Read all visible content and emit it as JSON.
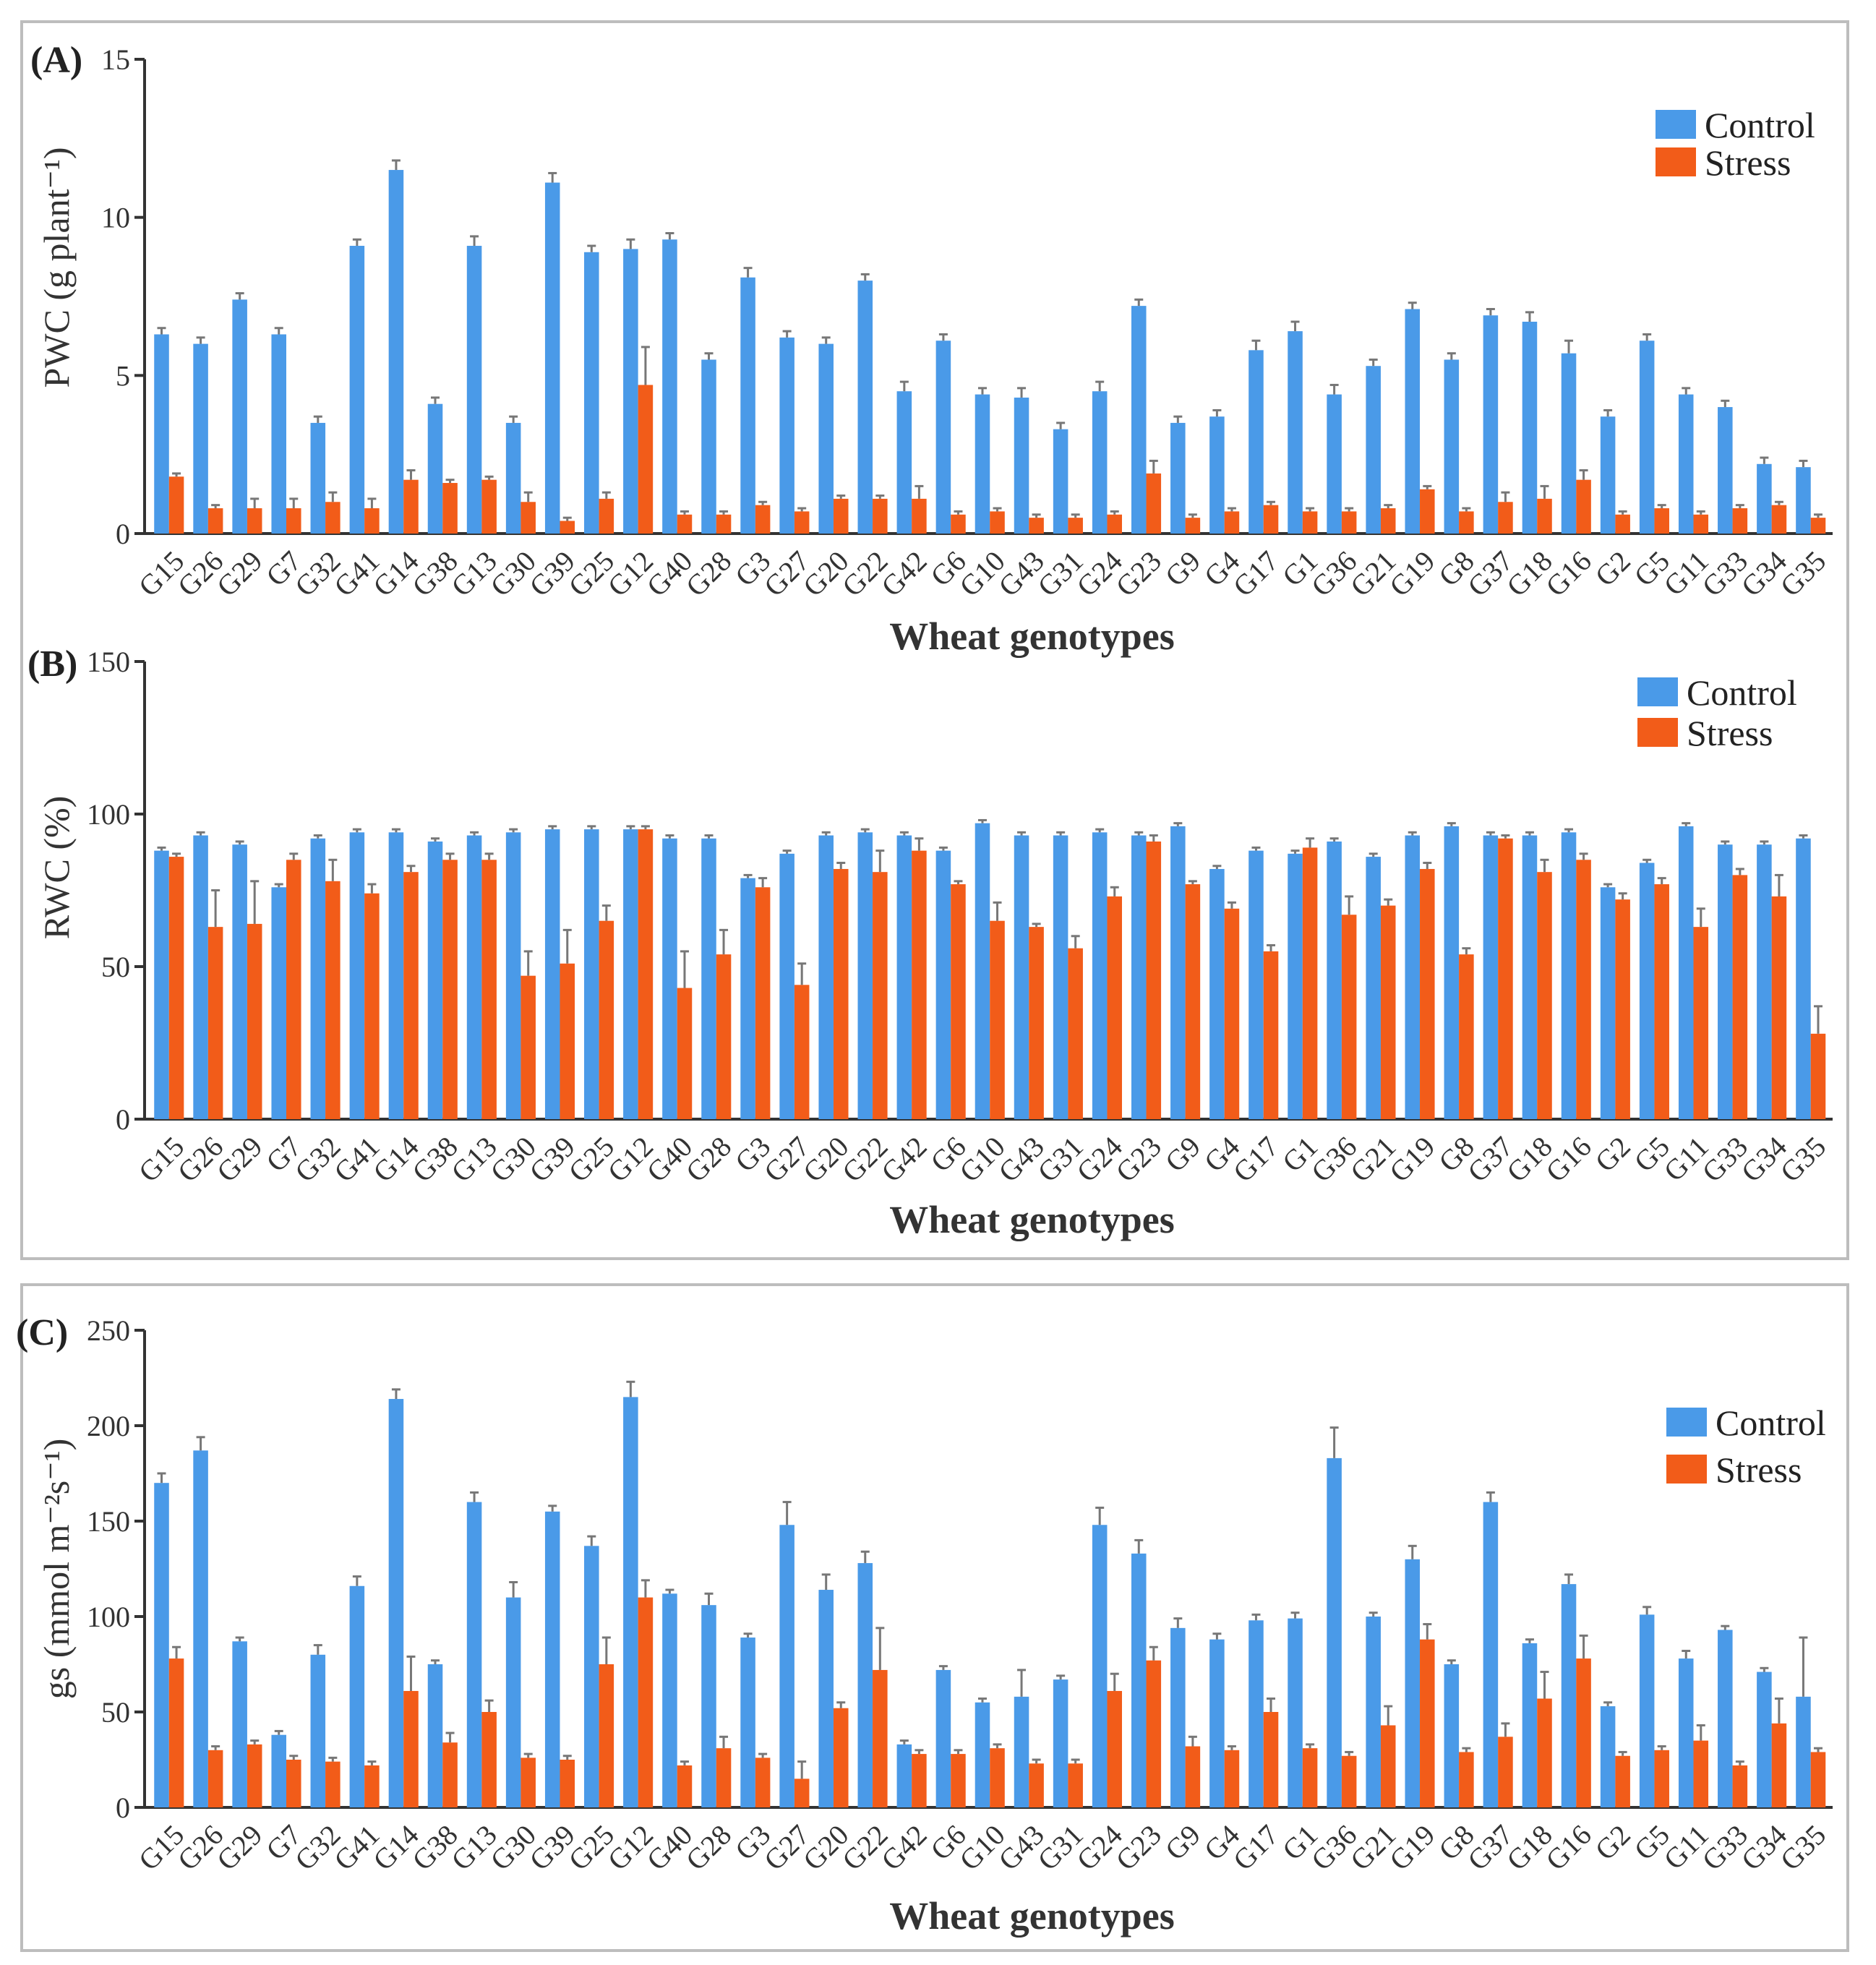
{
  "colors": {
    "control": "#4a9ae8",
    "stress": "#f25c19"
  },
  "xlabel": "Wheat genotypes",
  "chart_data": [
    {
      "type": "bar",
      "panel": "(A)",
      "ylabel": "PWC (g plant⁻¹)",
      "xlabel": "Wheat genotypes",
      "ylim": [
        0,
        15
      ],
      "yticks": [
        "0",
        "5",
        "10",
        "15"
      ],
      "legend": [
        "Control",
        "Stress"
      ],
      "legend_position": "top-right",
      "categories": [
        "G15",
        "G26",
        "G29",
        "G7",
        "G32",
        "G41",
        "G14",
        "G38",
        "G13",
        "G30",
        "G39",
        "G25",
        "G12",
        "G40",
        "G28",
        "G3",
        "G27",
        "G20",
        "G22",
        "G42",
        "G6",
        "G10",
        "G43",
        "G31",
        "G24",
        "G23",
        "G9",
        "G4",
        "G17",
        "G1",
        "G36",
        "G21",
        "G19",
        "G8",
        "G37",
        "G18",
        "G16",
        "G2",
        "G5",
        "G11",
        "G33",
        "G34",
        "G35"
      ],
      "series": [
        {
          "name": "Control",
          "values": [
            6.3,
            6.0,
            7.4,
            6.3,
            3.5,
            9.1,
            11.5,
            4.1,
            9.1,
            3.5,
            11.1,
            8.9,
            9.0,
            9.3,
            5.5,
            8.1,
            6.2,
            6.0,
            8.0,
            4.5,
            6.1,
            4.4,
            4.3,
            3.3,
            4.5,
            7.2,
            3.5,
            3.7,
            5.8,
            6.4,
            4.4,
            5.3,
            7.1,
            5.5,
            6.9,
            6.7,
            5.7,
            3.7,
            6.1,
            4.4,
            4.0,
            2.2,
            2.1
          ],
          "errors": [
            0.2,
            0.2,
            0.2,
            0.2,
            0.2,
            0.2,
            0.3,
            0.2,
            0.3,
            0.2,
            0.3,
            0.2,
            0.3,
            0.2,
            0.2,
            0.3,
            0.2,
            0.2,
            0.2,
            0.3,
            0.2,
            0.2,
            0.3,
            0.2,
            0.3,
            0.2,
            0.2,
            0.2,
            0.3,
            0.3,
            0.3,
            0.2,
            0.2,
            0.2,
            0.2,
            0.3,
            0.4,
            0.2,
            0.2,
            0.2,
            0.2,
            0.2,
            0.2
          ]
        },
        {
          "name": "Stress",
          "values": [
            1.8,
            0.8,
            0.8,
            0.8,
            1.0,
            0.8,
            1.7,
            1.6,
            1.7,
            1.0,
            0.4,
            1.1,
            4.7,
            0.6,
            0.6,
            0.9,
            0.7,
            1.1,
            1.1,
            1.1,
            0.6,
            0.7,
            0.5,
            0.5,
            0.6,
            1.9,
            0.5,
            0.7,
            0.9,
            0.7,
            0.7,
            0.8,
            1.4,
            0.7,
            1.0,
            1.1,
            1.7,
            0.6,
            0.8,
            0.6,
            0.8,
            0.9,
            0.5
          ],
          "errors": [
            0.1,
            0.1,
            0.3,
            0.3,
            0.3,
            0.3,
            0.3,
            0.1,
            0.1,
            0.3,
            0.1,
            0.2,
            1.2,
            0.1,
            0.1,
            0.1,
            0.1,
            0.1,
            0.1,
            0.4,
            0.1,
            0.1,
            0.1,
            0.1,
            0.1,
            0.4,
            0.1,
            0.1,
            0.1,
            0.1,
            0.1,
            0.1,
            0.1,
            0.1,
            0.3,
            0.4,
            0.3,
            0.1,
            0.1,
            0.1,
            0.1,
            0.1,
            0.1
          ]
        }
      ]
    },
    {
      "type": "bar",
      "panel": "(B)",
      "ylabel": "RWC (%)",
      "xlabel": "Wheat genotypes",
      "ylim": [
        0,
        150
      ],
      "yticks": [
        "0",
        "50",
        "100",
        "150"
      ],
      "legend": [
        "Control",
        "Stress"
      ],
      "legend_position": "top-right",
      "categories": [
        "G15",
        "G26",
        "G29",
        "G7",
        "G32",
        "G41",
        "G14",
        "G38",
        "G13",
        "G30",
        "G39",
        "G25",
        "G12",
        "G40",
        "G28",
        "G3",
        "G27",
        "G20",
        "G22",
        "G42",
        "G6",
        "G10",
        "G43",
        "G31",
        "G24",
        "G23",
        "G9",
        "G4",
        "G17",
        "G1",
        "G36",
        "G21",
        "G19",
        "G8",
        "G37",
        "G18",
        "G16",
        "G2",
        "G5",
        "G11",
        "G33",
        "G34",
        "G35"
      ],
      "series": [
        {
          "name": "Control",
          "values": [
            88,
            93,
            90,
            76,
            92,
            94,
            94,
            91,
            93,
            94,
            95,
            95,
            95,
            92,
            92,
            79,
            87,
            93,
            94,
            93,
            88,
            97,
            93,
            93,
            94,
            93,
            96,
            82,
            88,
            87,
            91,
            86,
            93,
            96,
            93,
            93,
            94,
            76,
            84,
            96,
            90,
            90,
            92
          ],
          "errors": [
            1,
            1,
            1,
            1,
            1,
            1,
            1,
            1,
            1,
            1,
            1,
            1,
            1,
            1,
            1,
            1,
            1,
            1,
            1,
            1,
            1,
            1,
            1,
            1,
            1,
            1,
            1,
            1,
            1,
            1,
            1,
            1,
            1,
            1,
            1,
            1,
            1,
            1,
            1,
            1,
            1,
            1,
            1
          ]
        },
        {
          "name": "Stress",
          "values": [
            86,
            63,
            64,
            85,
            78,
            74,
            81,
            85,
            85,
            47,
            51,
            65,
            95,
            43,
            54,
            76,
            44,
            82,
            81,
            88,
            77,
            65,
            63,
            56,
            73,
            91,
            77,
            69,
            55,
            89,
            67,
            70,
            82,
            54,
            92,
            81,
            85,
            72,
            77,
            63,
            80,
            73,
            28
          ],
          "errors": [
            1,
            12,
            14,
            2,
            7,
            3,
            2,
            2,
            2,
            8,
            11,
            5,
            1,
            12,
            8,
            3,
            7,
            2,
            7,
            4,
            1,
            6,
            1,
            4,
            3,
            2,
            1,
            2,
            2,
            3,
            6,
            2,
            2,
            2,
            1,
            4,
            2,
            2,
            2,
            6,
            2,
            7,
            9
          ]
        }
      ]
    },
    {
      "type": "bar",
      "panel": "(C)",
      "ylabel": "gs (mmol m⁻²s⁻¹)",
      "xlabel": "Wheat genotypes",
      "ylim": [
        0,
        250
      ],
      "yticks": [
        "0",
        "50",
        "100",
        "150",
        "200",
        "250"
      ],
      "legend": [
        "Control",
        "Stress"
      ],
      "legend_position": "top-right",
      "categories": [
        "G15",
        "G26",
        "G29",
        "G7",
        "G32",
        "G41",
        "G14",
        "G38",
        "G13",
        "G30",
        "G39",
        "G25",
        "G12",
        "G40",
        "G28",
        "G3",
        "G27",
        "G20",
        "G22",
        "G42",
        "G6",
        "G10",
        "G43",
        "G31",
        "G24",
        "G23",
        "G9",
        "G4",
        "G17",
        "G1",
        "G36",
        "G21",
        "G19",
        "G8",
        "G37",
        "G18",
        "G16",
        "G2",
        "G5",
        "G11",
        "G33",
        "G34",
        "G35"
      ],
      "series": [
        {
          "name": "Control",
          "values": [
            170,
            187,
            87,
            38,
            80,
            116,
            214,
            75,
            160,
            110,
            155,
            137,
            215,
            112,
            106,
            89,
            148,
            114,
            128,
            33,
            72,
            55,
            58,
            67,
            148,
            133,
            94,
            88,
            98,
            99,
            183,
            100,
            130,
            75,
            160,
            86,
            117,
            53,
            101,
            78,
            93,
            71,
            58
          ],
          "errors": [
            5,
            7,
            2,
            2,
            5,
            5,
            5,
            2,
            5,
            8,
            3,
            5,
            8,
            2,
            6,
            2,
            12,
            8,
            6,
            2,
            2,
            2,
            14,
            2,
            9,
            7,
            5,
            3,
            3,
            3,
            16,
            2,
            7,
            2,
            5,
            2,
            5,
            2,
            4,
            4,
            2,
            2,
            31
          ]
        },
        {
          "name": "Stress",
          "values": [
            78,
            30,
            33,
            25,
            24,
            22,
            61,
            34,
            50,
            26,
            25,
            75,
            110,
            22,
            31,
            26,
            15,
            52,
            72,
            28,
            28,
            31,
            23,
            23,
            61,
            77,
            32,
            30,
            50,
            31,
            27,
            43,
            88,
            29,
            37,
            57,
            78,
            27,
            30,
            35,
            22,
            44,
            29
          ],
          "errors": [
            6,
            2,
            2,
            2,
            2,
            2,
            18,
            5,
            6,
            2,
            2,
            14,
            9,
            2,
            6,
            2,
            9,
            3,
            22,
            2,
            2,
            2,
            2,
            2,
            9,
            7,
            5,
            2,
            7,
            2,
            2,
            10,
            8,
            2,
            7,
            14,
            12,
            2,
            2,
            8,
            2,
            13,
            2
          ]
        }
      ]
    }
  ]
}
